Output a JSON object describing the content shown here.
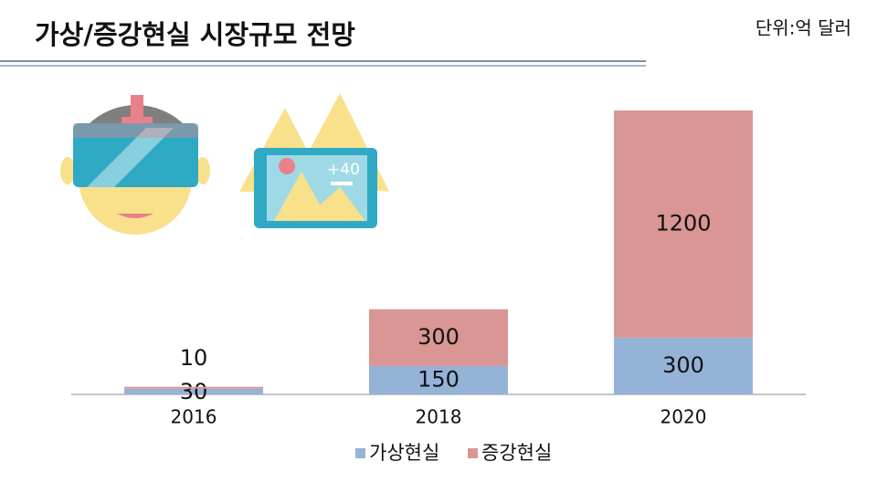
{
  "chart_data": {
    "type": "stacked_bar",
    "title": "가상/증강현실 시장규모 전망",
    "unit_label": "단위:억 달러",
    "annotations": [
      "+40"
    ],
    "categories": [
      "2016",
      "2018",
      "2020"
    ],
    "series": [
      {
        "name": "가상현실",
        "color": "#95b3d7",
        "values": [
          30,
          150,
          300
        ]
      },
      {
        "name": "증강현실",
        "color": "#d99694",
        "values": [
          10,
          300,
          1200
        ]
      }
    ],
    "legend": "bottom"
  }
}
